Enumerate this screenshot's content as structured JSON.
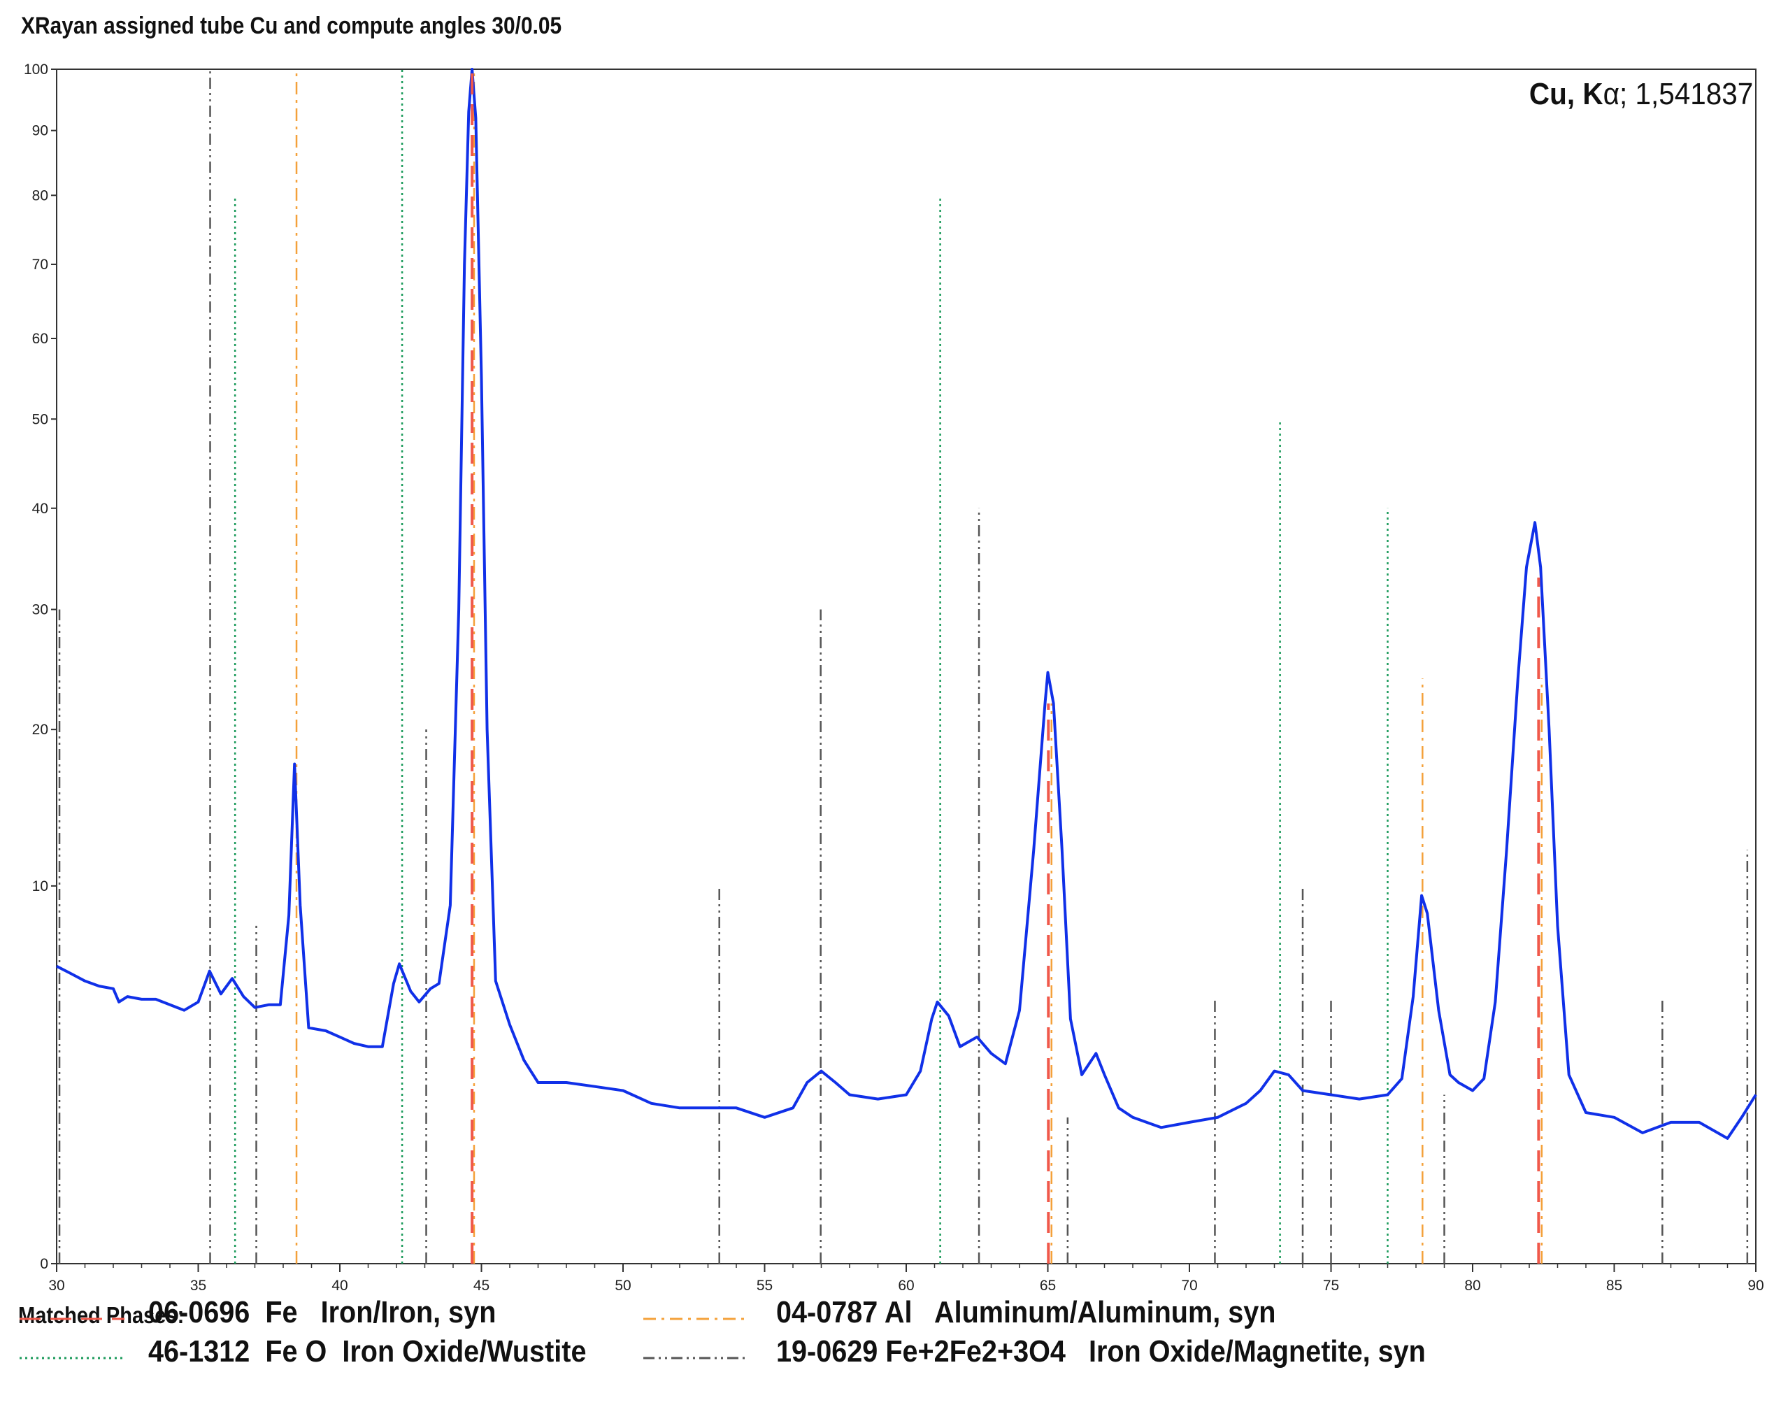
{
  "header": {
    "title": "XRayan assigned tube Cu and compute angles 30/0.05",
    "wavelength_bold": "Cu, K",
    "wavelength_greek": "α",
    "wavelength_rest": "; 1,541837"
  },
  "legend": {
    "heading": "Matched Phases:",
    "items": [
      {
        "code": "06-0696",
        "formula": "Fe",
        "name": "Iron/Iron, syn",
        "color": "#f0584a",
        "style": "dash"
      },
      {
        "code": "04-0787",
        "formula": "Al",
        "name": "Aluminum/Aluminum, syn",
        "color": "#f4a13a",
        "style": "dashdot"
      },
      {
        "code": "46-1312",
        "formula": "Fe O",
        "name": "Iron Oxide/Wustite",
        "color": "#1a9a5a",
        "style": "dot"
      },
      {
        "code": "19-0629",
        "formula": "Fe+2Fe2+3O4",
        "name": "Iron Oxide/Magnetite, syn",
        "color": "#555555",
        "style": "dashdotdot"
      }
    ]
  },
  "chart_data": {
    "type": "line",
    "xlim": [
      30,
      90
    ],
    "x_ticks": [
      30,
      35,
      40,
      45,
      50,
      55,
      60,
      65,
      70,
      75,
      80,
      85,
      90
    ],
    "y_scale": "sqrt",
    "ylim": [
      0,
      100
    ],
    "y_ticks": [
      0,
      10,
      20,
      30,
      40,
      50,
      60,
      70,
      80,
      90,
      100
    ],
    "grid": false,
    "series": [
      {
        "color": "#1030e8",
        "points": [
          [
            30,
            6.2
          ],
          [
            30.5,
            5.9
          ],
          [
            31,
            5.6
          ],
          [
            31.5,
            5.4
          ],
          [
            32,
            5.3
          ],
          [
            32.2,
            4.8
          ],
          [
            32.5,
            5.0
          ],
          [
            33,
            4.9
          ],
          [
            33.5,
            4.9
          ],
          [
            34,
            4.7
          ],
          [
            34.5,
            4.5
          ],
          [
            35,
            4.8
          ],
          [
            35.4,
            6.0
          ],
          [
            35.8,
            5.1
          ],
          [
            36.2,
            5.7
          ],
          [
            36.6,
            5.0
          ],
          [
            37,
            4.6
          ],
          [
            37.5,
            4.7
          ],
          [
            37.9,
            4.7
          ],
          [
            38.2,
            8.5
          ],
          [
            38.4,
            17.5
          ],
          [
            38.6,
            9.0
          ],
          [
            38.9,
            3.9
          ],
          [
            39.5,
            3.8
          ],
          [
            40,
            3.6
          ],
          [
            40.5,
            3.4
          ],
          [
            41,
            3.3
          ],
          [
            41.5,
            3.3
          ],
          [
            41.9,
            5.5
          ],
          [
            42.1,
            6.3
          ],
          [
            42.5,
            5.2
          ],
          [
            42.8,
            4.8
          ],
          [
            43.2,
            5.3
          ],
          [
            43.5,
            5.5
          ],
          [
            43.9,
            9.0
          ],
          [
            44.2,
            30.0
          ],
          [
            44.4,
            70.0
          ],
          [
            44.55,
            93.0
          ],
          [
            44.67,
            100.0
          ],
          [
            44.8,
            92.0
          ],
          [
            45.0,
            55.0
          ],
          [
            45.2,
            20.0
          ],
          [
            45.5,
            5.6
          ],
          [
            46.0,
            4.0
          ],
          [
            46.5,
            2.9
          ],
          [
            47,
            2.3
          ],
          [
            48,
            2.3
          ],
          [
            49,
            2.2
          ],
          [
            50,
            2.1
          ],
          [
            51,
            1.8
          ],
          [
            52,
            1.7
          ],
          [
            53,
            1.7
          ],
          [
            54,
            1.7
          ],
          [
            55,
            1.5
          ],
          [
            56,
            1.7
          ],
          [
            56.5,
            2.3
          ],
          [
            57,
            2.6
          ],
          [
            57.5,
            2.3
          ],
          [
            58,
            2.0
          ],
          [
            59,
            1.9
          ],
          [
            60,
            2.0
          ],
          [
            60.5,
            2.6
          ],
          [
            60.9,
            4.2
          ],
          [
            61.1,
            4.8
          ],
          [
            61.5,
            4.3
          ],
          [
            61.9,
            3.3
          ],
          [
            62.5,
            3.6
          ],
          [
            63,
            3.1
          ],
          [
            63.5,
            2.8
          ],
          [
            64,
            4.5
          ],
          [
            64.5,
            12.0
          ],
          [
            64.9,
            22.0
          ],
          [
            65.0,
            24.5
          ],
          [
            65.2,
            22.0
          ],
          [
            65.5,
            12.0
          ],
          [
            65.8,
            4.2
          ],
          [
            66.2,
            2.5
          ],
          [
            66.7,
            3.1
          ],
          [
            67,
            2.5
          ],
          [
            67.5,
            1.7
          ],
          [
            68,
            1.5
          ],
          [
            69,
            1.3
          ],
          [
            70,
            1.4
          ],
          [
            71,
            1.5
          ],
          [
            72,
            1.8
          ],
          [
            72.5,
            2.1
          ],
          [
            73,
            2.6
          ],
          [
            73.5,
            2.5
          ],
          [
            74,
            2.1
          ],
          [
            75,
            2.0
          ],
          [
            76,
            1.9
          ],
          [
            77,
            2.0
          ],
          [
            77.5,
            2.4
          ],
          [
            77.9,
            5.0
          ],
          [
            78.2,
            9.5
          ],
          [
            78.4,
            8.6
          ],
          [
            78.8,
            4.5
          ],
          [
            79.2,
            2.5
          ],
          [
            79.5,
            2.3
          ],
          [
            80,
            2.1
          ],
          [
            80.4,
            2.4
          ],
          [
            80.8,
            4.8
          ],
          [
            81.2,
            12.0
          ],
          [
            81.6,
            24.0
          ],
          [
            81.9,
            34.0
          ],
          [
            82.2,
            38.5
          ],
          [
            82.4,
            34.0
          ],
          [
            82.7,
            20.0
          ],
          [
            83.0,
            8.0
          ],
          [
            83.4,
            2.5
          ],
          [
            84,
            1.6
          ],
          [
            85,
            1.5
          ],
          [
            86,
            1.2
          ],
          [
            87,
            1.4
          ],
          [
            88,
            1.4
          ],
          [
            89,
            1.1
          ],
          [
            89.5,
            1.5
          ],
          [
            90,
            2.0
          ]
        ]
      }
    ],
    "reference_lines": [
      {
        "phase": "06-0696",
        "x": 44.67,
        "y": 100
      },
      {
        "phase": "06-0696",
        "x": 65.02,
        "y": 22
      },
      {
        "phase": "06-0696",
        "x": 82.33,
        "y": 33
      },
      {
        "phase": "04-0787",
        "x": 38.47,
        "y": 100
      },
      {
        "phase": "04-0787",
        "x": 44.74,
        "y": 100
      },
      {
        "phase": "04-0787",
        "x": 65.13,
        "y": 22
      },
      {
        "phase": "04-0787",
        "x": 78.23,
        "y": 24
      },
      {
        "phase": "04-0787",
        "x": 82.44,
        "y": 24
      },
      {
        "phase": "46-1312",
        "x": 36.3,
        "y": 80
      },
      {
        "phase": "46-1312",
        "x": 42.2,
        "y": 100
      },
      {
        "phase": "46-1312",
        "x": 61.2,
        "y": 80
      },
      {
        "phase": "46-1312",
        "x": 73.2,
        "y": 50
      },
      {
        "phase": "46-1312",
        "x": 77.0,
        "y": 40
      },
      {
        "phase": "19-0629",
        "x": 30.1,
        "y": 30
      },
      {
        "phase": "19-0629",
        "x": 35.42,
        "y": 100
      },
      {
        "phase": "19-0629",
        "x": 37.05,
        "y": 8
      },
      {
        "phase": "19-0629",
        "x": 43.05,
        "y": 20
      },
      {
        "phase": "19-0629",
        "x": 53.4,
        "y": 10
      },
      {
        "phase": "19-0629",
        "x": 56.98,
        "y": 30
      },
      {
        "phase": "19-0629",
        "x": 62.57,
        "y": 40
      },
      {
        "phase": "19-0629",
        "x": 65.7,
        "y": 1.5
      },
      {
        "phase": "19-0629",
        "x": 70.9,
        "y": 5
      },
      {
        "phase": "19-0629",
        "x": 74.0,
        "y": 10
      },
      {
        "phase": "19-0629",
        "x": 75.0,
        "y": 5
      },
      {
        "phase": "19-0629",
        "x": 79.0,
        "y": 2
      },
      {
        "phase": "19-0629",
        "x": 86.7,
        "y": 5
      },
      {
        "phase": "19-0629",
        "x": 89.7,
        "y": 12
      }
    ]
  }
}
